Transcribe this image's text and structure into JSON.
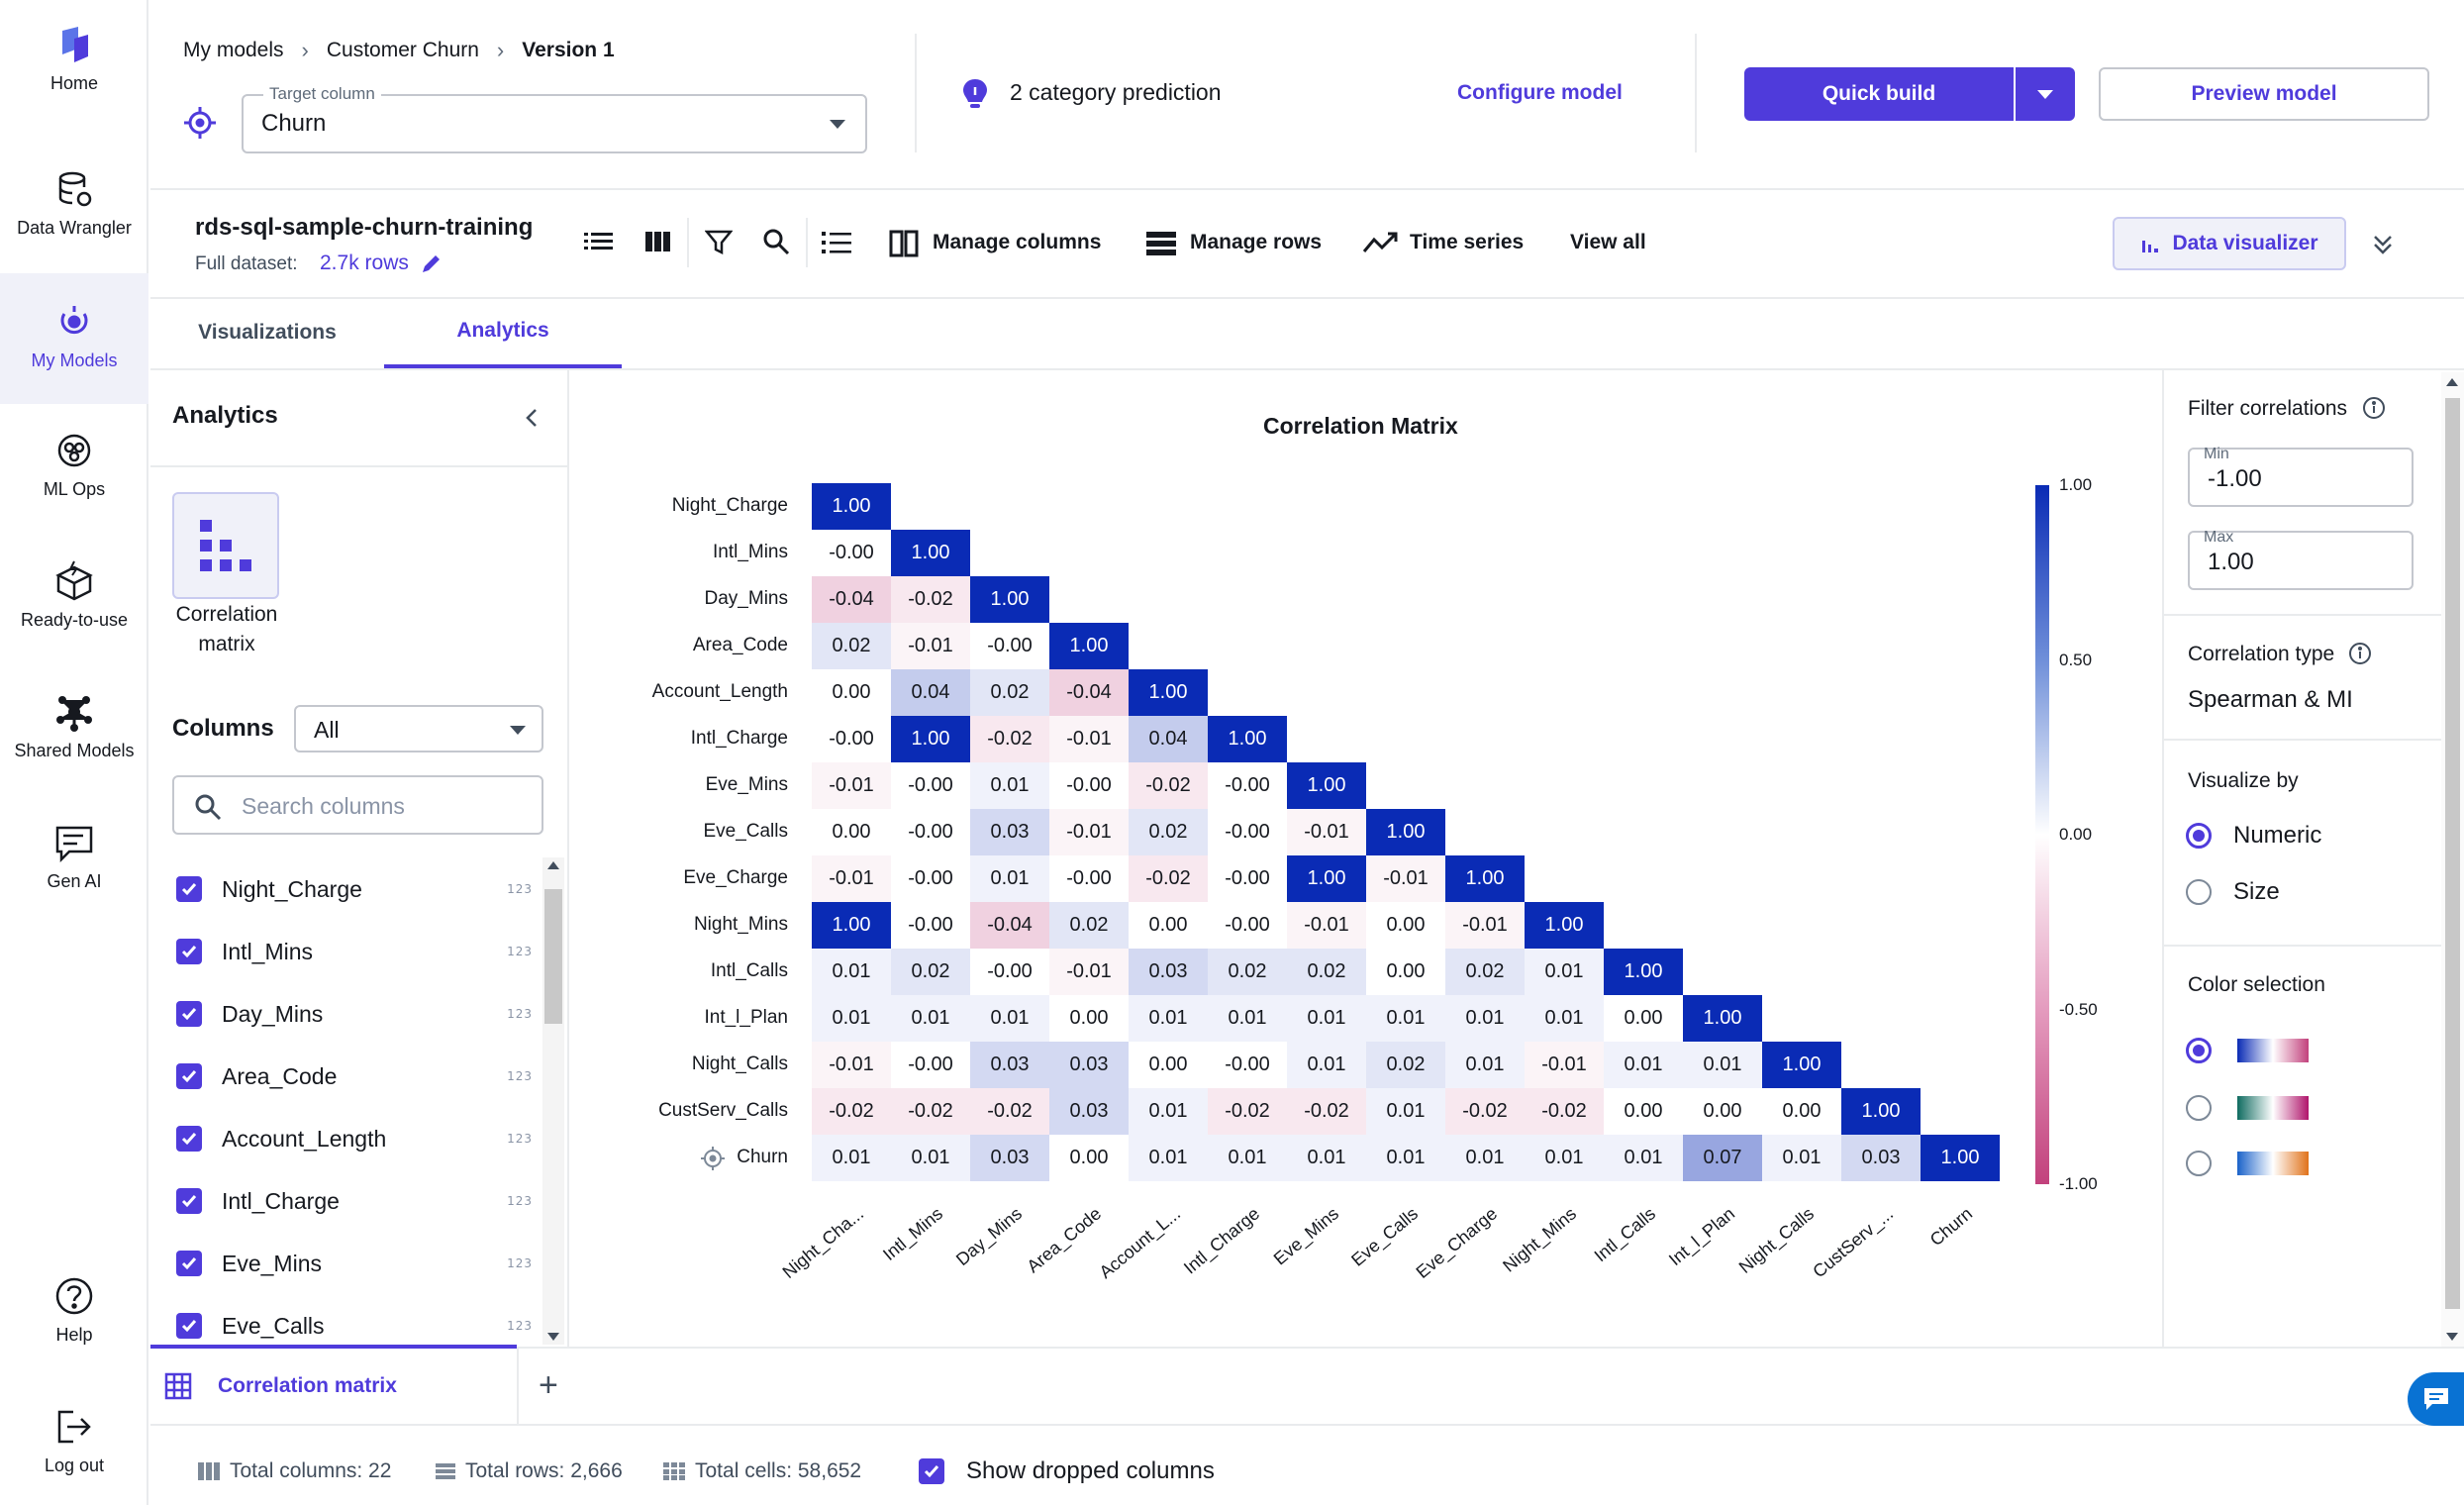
{
  "nav": {
    "items": [
      {
        "label": "Home",
        "icon": "canvas-logo-icon"
      },
      {
        "label": "Data Wrangler",
        "icon": "database-icon"
      },
      {
        "label": "My Models",
        "icon": "models-icon"
      },
      {
        "label": "ML Ops",
        "icon": "mlops-icon"
      },
      {
        "label": "Ready-to-use",
        "icon": "box-icon"
      },
      {
        "label": "Shared Models",
        "icon": "network-icon"
      },
      {
        "label": "Gen AI",
        "icon": "chat-icon"
      }
    ],
    "help": "Help",
    "logout": "Log out"
  },
  "breadcrumb": [
    "My models",
    "Customer Churn",
    "Version 1"
  ],
  "target": {
    "label": "Target column",
    "value": "Churn"
  },
  "prediction": "2 category prediction",
  "configure": "Configure model",
  "quick_build": "Quick build",
  "preview": "Preview model",
  "dataset": {
    "name": "rds-sql-sample-churn-training",
    "full_label": "Full dataset:",
    "rows": "2.7k rows"
  },
  "toolbar": {
    "manage_columns": "Manage columns",
    "manage_rows": "Manage rows",
    "time_series": "Time series",
    "view_all": "View all",
    "data_visualizer": "Data visualizer"
  },
  "tabs": [
    "Visualizations",
    "Analytics"
  ],
  "analytics": {
    "title": "Analytics",
    "tile": "Correlation matrix",
    "columns_label": "Columns",
    "columns_select": "All",
    "search_placeholder": "Search columns",
    "badge": "123",
    "columns": [
      "Night_Charge",
      "Intl_Mins",
      "Day_Mins",
      "Area_Code",
      "Account_Length",
      "Intl_Charge",
      "Eve_Mins",
      "Eve_Calls"
    ]
  },
  "bottom_tab": {
    "label": "Correlation matrix",
    "add": "+"
  },
  "chart_data": {
    "type": "heatmap",
    "title": "Correlation Matrix",
    "rows": [
      "Night_Charge",
      "Intl_Mins",
      "Day_Mins",
      "Area_Code",
      "Account_Length",
      "Intl_Charge",
      "Eve_Mins",
      "Eve_Calls",
      "Eve_Charge",
      "Night_Mins",
      "Intl_Calls",
      "Int_l_Plan",
      "Night_Calls",
      "CustServ_Calls",
      "Churn"
    ],
    "columns": [
      "Night_Cha...",
      "Intl_Mins",
      "Day_Mins",
      "Area_Code",
      "Account_L...",
      "Intl_Charge",
      "Eve_Mins",
      "Eve_Calls",
      "Eve_Charge",
      "Night_Mins",
      "Intl_Calls",
      "Int_l_Plan",
      "Night_Calls",
      "CustServ_...",
      "Churn"
    ],
    "values": [
      [
        "1.00"
      ],
      [
        "-0.00",
        "1.00"
      ],
      [
        "-0.04",
        "-0.02",
        "1.00"
      ],
      [
        "0.02",
        "-0.01",
        "-0.00",
        "1.00"
      ],
      [
        "0.00",
        "0.04",
        "0.02",
        "-0.04",
        "1.00"
      ],
      [
        "-0.00",
        "1.00",
        "-0.02",
        "-0.01",
        "0.04",
        "1.00"
      ],
      [
        "-0.01",
        "-0.00",
        "0.01",
        "-0.00",
        "-0.02",
        "-0.00",
        "1.00"
      ],
      [
        "0.00",
        "-0.00",
        "0.03",
        "-0.01",
        "0.02",
        "-0.00",
        "-0.01",
        "1.00"
      ],
      [
        "-0.01",
        "-0.00",
        "0.01",
        "-0.00",
        "-0.02",
        "-0.00",
        "1.00",
        "-0.01",
        "1.00"
      ],
      [
        "1.00",
        "-0.00",
        "-0.04",
        "0.02",
        "0.00",
        "-0.00",
        "-0.01",
        "0.00",
        "-0.01",
        "1.00"
      ],
      [
        "0.01",
        "0.02",
        "-0.00",
        "-0.01",
        "0.03",
        "0.02",
        "0.02",
        "0.00",
        "0.02",
        "0.01",
        "1.00"
      ],
      [
        "0.01",
        "0.01",
        "0.01",
        "0.00",
        "0.01",
        "0.01",
        "0.01",
        "0.01",
        "0.01",
        "0.01",
        "0.00",
        "1.00"
      ],
      [
        "-0.01",
        "-0.00",
        "0.03",
        "0.03",
        "0.00",
        "-0.00",
        "0.01",
        "0.02",
        "0.01",
        "-0.01",
        "0.01",
        "0.01",
        "1.00"
      ],
      [
        "-0.02",
        "-0.02",
        "-0.02",
        "0.03",
        "0.01",
        "-0.02",
        "-0.02",
        "0.01",
        "-0.02",
        "-0.02",
        "0.00",
        "0.00",
        "0.00",
        "1.00"
      ],
      [
        "0.01",
        "0.01",
        "0.03",
        "0.00",
        "0.01",
        "0.01",
        "0.01",
        "0.01",
        "0.01",
        "0.01",
        "0.01",
        "0.07",
        "0.01",
        "0.03",
        "1.00"
      ]
    ],
    "colorbar": {
      "ticks": [
        "1.00",
        "0.50",
        "0.00",
        "-0.50",
        "-1.00"
      ],
      "max_color": "#0a2bb5",
      "mid_color": "#ffffff",
      "min_color": "#c2417c"
    }
  },
  "filter": {
    "title": "Filter correlations",
    "min_label": "Min",
    "min_value": "-1.00",
    "max_label": "Max",
    "max_value": "1.00",
    "type_label": "Correlation type",
    "type_value": "Spearman & MI",
    "visualize_label": "Visualize by",
    "visualize_options": [
      "Numeric",
      "Size"
    ],
    "color_label": "Color selection"
  },
  "footer": {
    "total_columns": "Total columns: 22",
    "total_rows": "Total rows: 2,666",
    "total_cells": "Total cells: 58,652",
    "show_dropped": "Show dropped columns"
  }
}
